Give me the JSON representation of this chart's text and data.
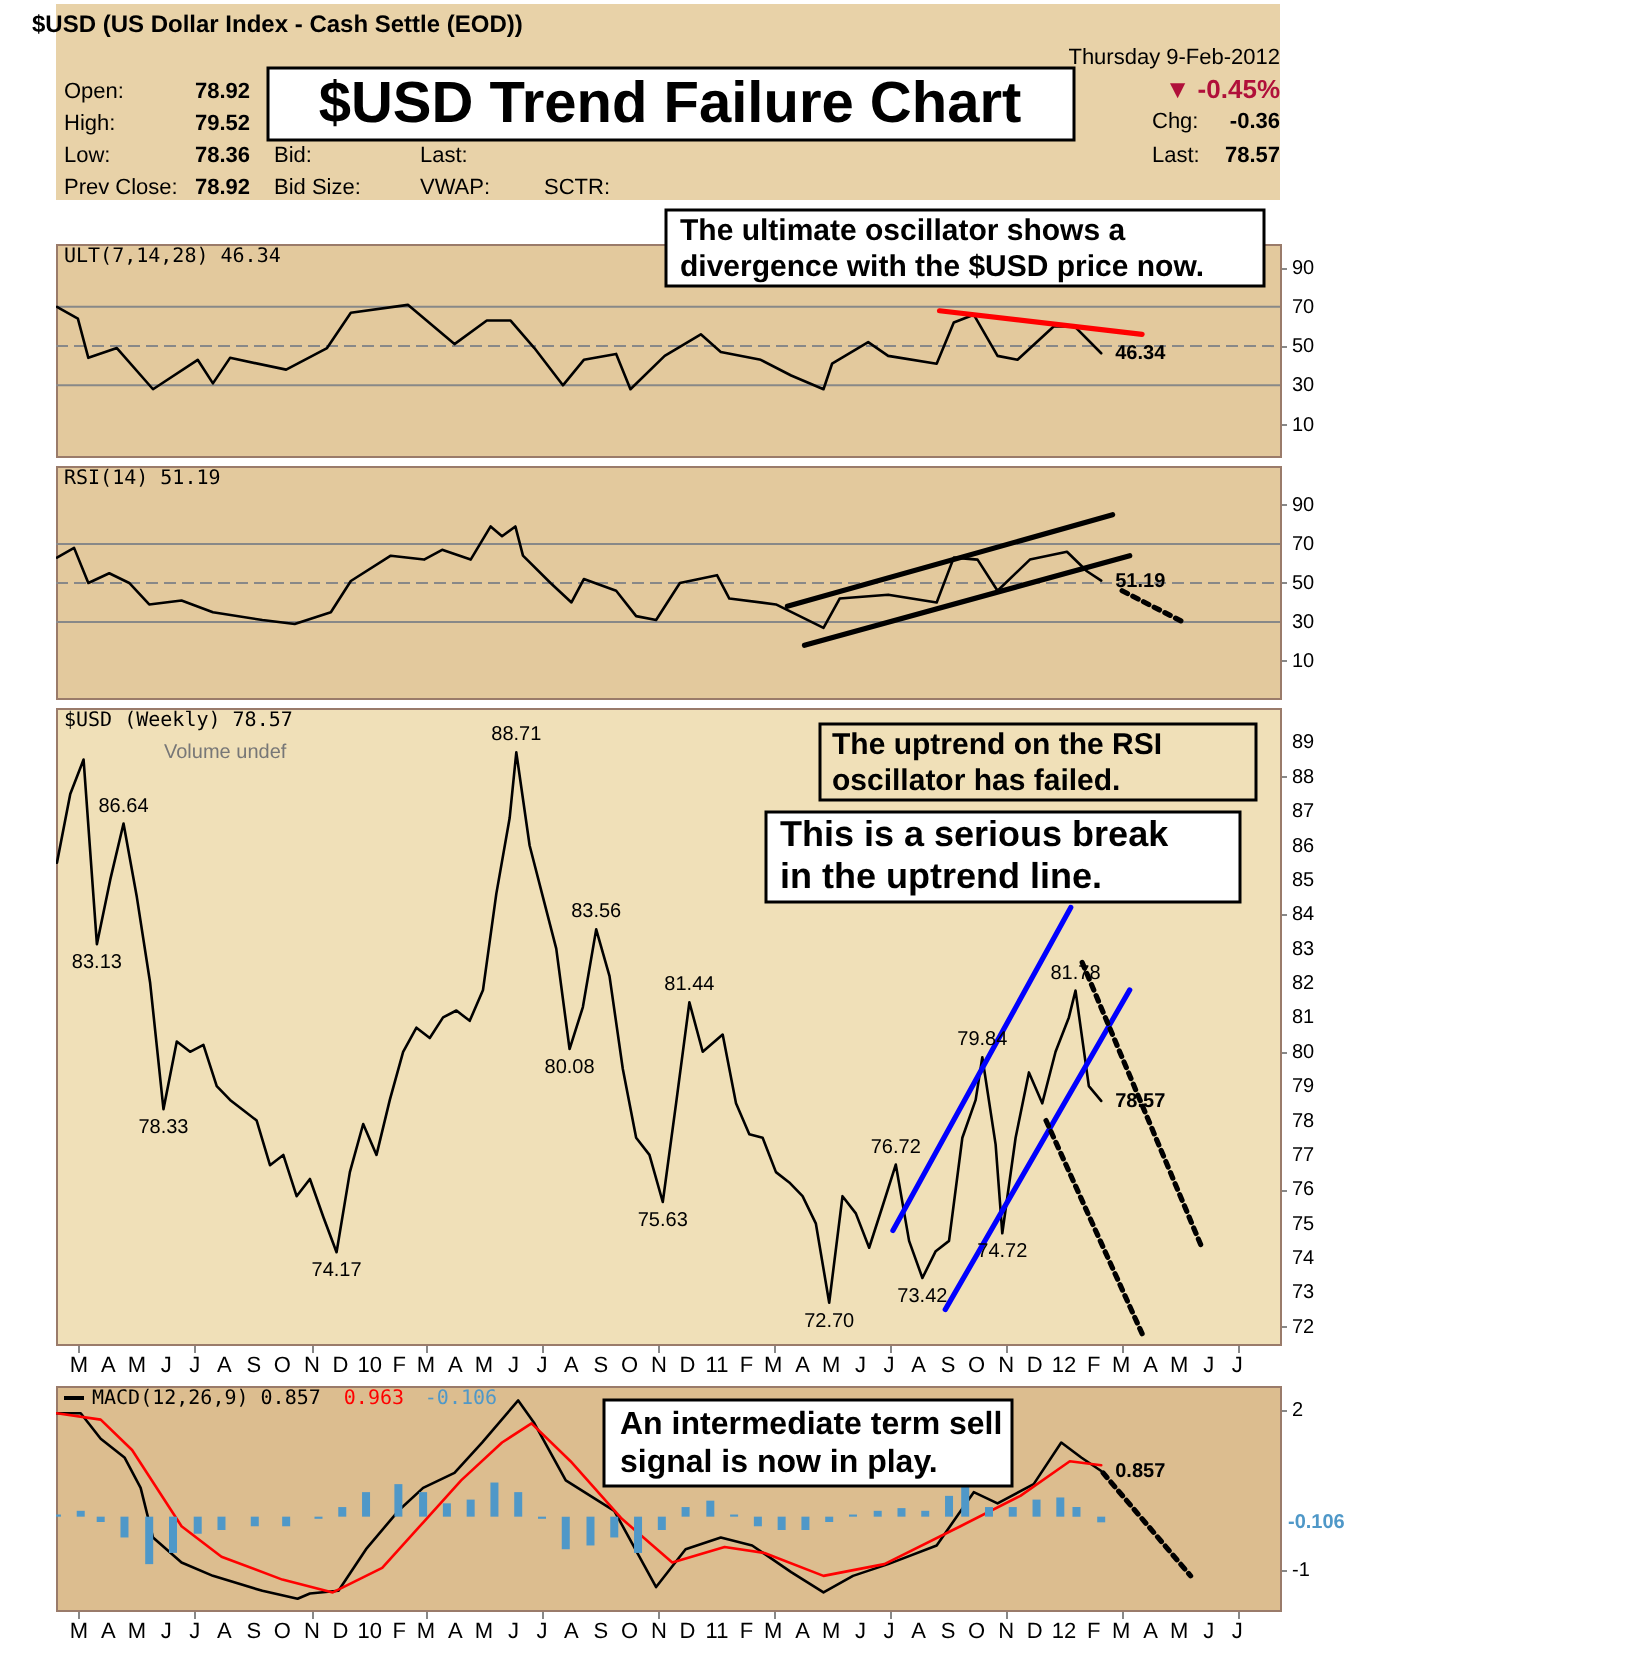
{
  "chart_data": [
    {
      "type": "line",
      "title": "$USD Trend Failure Chart",
      "annotations": [
        "$USD (US Dollar Index - Cash Settle (EOD))",
        "Thursday 9-Feb-2012",
        "Open:",
        "78.92",
        "High:",
        "79.52",
        "Low:",
        "78.36",
        "Prev Close:",
        "78.92",
        "Bid:",
        "Bid Size:",
        "Last:",
        "VWAP:",
        "SCTR:",
        "▼ -0.45%",
        "Chg:",
        "-0.36",
        "Last:",
        "78.57",
        "The ultimate oscillator shows a\ndivergence with the $USD price now.",
        {
          "text": "46.34",
          "x": "2012-02-09",
          "y": 46.34
        }
      ],
      "xlim": [
        "2009-02-05",
        "2012-08-15"
      ],
      "ylim": [
        -6,
        102
      ],
      "yticks": [
        10,
        30,
        50,
        70,
        90
      ],
      "tick_labels": "y",
      "legend": "top left",
      "ref_lines": [
        {
          "axis": "y",
          "value": 70,
          "color": "#888888",
          "line_style": "solid"
        },
        {
          "axis": "y",
          "value": 30,
          "color": "#888888",
          "line_style": "solid"
        },
        {
          "axis": "y",
          "value": 50,
          "color": "#888888",
          "line_style": "dashed"
        }
      ],
      "series": [
        {
          "name": "ULT(7,14,28) 46.34",
          "color": "#000000",
          "x": [
            "2009-02-06",
            "2009-02-28",
            "2009-03-11",
            "2009-04-10",
            "2009-05-18",
            "2009-07-04",
            "2009-07-20",
            "2009-08-07",
            "2009-10-05",
            "2009-11-17",
            "2009-12-12",
            "2010-02-10",
            "2010-03-31",
            "2010-05-04",
            "2010-05-29",
            "2010-06-23",
            "2010-07-23",
            "2010-08-14",
            "2010-09-17",
            "2010-10-02",
            "2010-11-07",
            "2010-12-15",
            "2011-01-05",
            "2011-02-16",
            "2011-03-20",
            "2011-04-23",
            "2011-05-02",
            "2011-06-09",
            "2011-06-30",
            "2011-08-20",
            "2011-09-07",
            "2011-09-28",
            "2011-10-23",
            "2011-11-13",
            "2011-12-21",
            "2012-01-12",
            "2012-02-09"
          ],
          "values": [
            70,
            64,
            44,
            49,
            28,
            43,
            31,
            44,
            38,
            49,
            67,
            71,
            51,
            63,
            63,
            49,
            30,
            43,
            46,
            28,
            45,
            56,
            47,
            43,
            35,
            28,
            41,
            52,
            45,
            41,
            62,
            66,
            45,
            43,
            60,
            60,
            46.34
          ]
        },
        {
          "type": "line",
          "color": "#ff0000",
          "x": [
            "2011-08-23",
            "2012-03-23"
          ],
          "values": [
            68,
            56
          ]
        }
      ]
    },
    {
      "type": "line",
      "annotations": [
        {
          "text": "51.19",
          "x": "2012-02-09",
          "y": 51.19
        }
      ],
      "xlim": [
        "2009-02-05",
        "2012-08-15"
      ],
      "ylim": [
        -9,
        110
      ],
      "yticks": [
        10,
        30,
        50,
        70,
        90
      ],
      "tick_labels": "y",
      "legend": "top left",
      "ref_lines": [
        {
          "axis": "y",
          "value": 70,
          "color": "#888888",
          "line_style": "solid"
        },
        {
          "axis": "y",
          "value": 30,
          "color": "#888888",
          "line_style": "solid"
        },
        {
          "axis": "y",
          "value": 50,
          "color": "#888888",
          "line_style": "dashed"
        }
      ],
      "series": [
        {
          "name": "RSI(14) 51.19",
          "color": "#000000",
          "x": [
            "2009-02-06",
            "2009-02-24",
            "2009-03-11",
            "2009-04-02",
            "2009-04-23",
            "2009-05-14",
            "2009-06-17",
            "2009-07-20",
            "2009-09-10",
            "2009-10-14",
            "2009-11-21",
            "2009-12-12",
            "2010-01-23",
            "2010-02-27",
            "2010-03-18",
            "2010-04-17",
            "2010-05-08",
            "2010-05-20",
            "2010-06-03",
            "2010-06-11",
            "2010-07-10",
            "2010-08-01",
            "2010-08-14",
            "2010-09-17",
            "2010-10-08",
            "2010-10-29",
            "2010-11-23",
            "2011-01-01",
            "2011-01-14",
            "2011-03-04",
            "2011-04-23",
            "2011-05-10",
            "2011-06-30",
            "2011-08-20",
            "2011-09-07",
            "2011-10-02",
            "2011-10-23",
            "2011-11-26",
            "2012-01-04",
            "2012-01-25",
            "2012-02-09"
          ],
          "values": [
            63,
            68,
            50,
            55,
            50,
            39,
            41,
            35,
            31,
            29,
            35,
            51,
            64,
            62,
            67,
            62,
            79,
            74,
            79,
            64,
            50,
            40,
            52,
            46,
            33,
            31,
            50,
            54,
            42,
            39,
            27,
            42,
            44,
            40,
            63,
            62,
            46,
            62,
            66,
            56,
            51.19
          ]
        },
        {
          "type": "line",
          "color": "#000000",
          "x": [
            "2011-03-16",
            "2012-02-21"
          ],
          "values": [
            38,
            85
          ]
        },
        {
          "type": "line",
          "color": "#000000",
          "x": [
            "2011-04-03",
            "2012-03-10"
          ],
          "values": [
            18,
            64
          ]
        },
        {
          "type": "line",
          "color": "#000000",
          "line_style": "dotted",
          "x": [
            "2012-03-02",
            "2012-05-05"
          ],
          "values": [
            46,
            30
          ]
        }
      ]
    },
    {
      "type": "line",
      "annotations": [
        "Volume undef",
        "The uptrend on the RSI\noscillator has failed.",
        "This is a serious break\nin the uptrend line.",
        {
          "text": "86.64",
          "x": "2009-04-17",
          "y": 86.64
        },
        {
          "text": "83.13",
          "x": "2009-03-20",
          "y": 83.13
        },
        {
          "text": "88.71",
          "x": "2010-06-04",
          "y": 88.71
        },
        {
          "text": "78.33",
          "x": "2009-05-29",
          "y": 78.33
        },
        {
          "text": "74.17",
          "x": "2009-11-27",
          "y": 74.17
        },
        {
          "text": "83.56",
          "x": "2010-08-27",
          "y": 83.56
        },
        {
          "text": "80.08",
          "x": "2010-07-30",
          "y": 80.08
        },
        {
          "text": "81.44",
          "x": "2010-12-03",
          "y": 81.44
        },
        {
          "text": "75.63",
          "x": "2010-11-05",
          "y": 75.63
        },
        {
          "text": "72.70",
          "x": "2011-04-29",
          "y": 72.7
        },
        {
          "text": "76.72",
          "x": "2011-07-08",
          "y": 76.72
        },
        {
          "text": "73.42",
          "x": "2011-08-05",
          "y": 73.42
        },
        {
          "text": "79.84",
          "x": "2011-10-07",
          "y": 79.84
        },
        {
          "text": "74.72",
          "x": "2011-10-28",
          "y": 74.72
        },
        {
          "text": "81.78",
          "x": "2012-01-13",
          "y": 81.78
        },
        {
          "text": "78.57",
          "x": "2012-02-09",
          "y": 78.57
        }
      ],
      "xlim": [
        "2009-02-05",
        "2012-08-15"
      ],
      "ylim": [
        71.5,
        90
      ],
      "yticks": [
        72,
        73,
        74,
        75,
        76,
        77,
        78,
        79,
        80,
        81,
        82,
        83,
        84,
        85,
        86,
        87,
        88,
        89
      ],
      "legend": "top left",
      "xticks": [
        {
          "value": "2009-03",
          "label": "M"
        },
        {
          "value": "2009-04",
          "label": "A"
        },
        {
          "value": "2009-05",
          "label": "M"
        },
        {
          "value": "2009-06",
          "label": "J"
        },
        {
          "value": "2009-07",
          "label": "J"
        },
        {
          "value": "2009-08",
          "label": "A"
        },
        {
          "value": "2009-09",
          "label": "S"
        },
        {
          "value": "2009-10",
          "label": "O"
        },
        {
          "value": "2009-11",
          "label": "N"
        },
        {
          "value": "2009-12",
          "label": "D"
        },
        {
          "value": "2010-01",
          "label": "10"
        },
        {
          "value": "2010-02",
          "label": "F"
        },
        {
          "value": "2010-03",
          "label": "M"
        },
        {
          "value": "2010-04",
          "label": "A"
        },
        {
          "value": "2010-05",
          "label": "M"
        },
        {
          "value": "2010-06",
          "label": "J"
        },
        {
          "value": "2010-07",
          "label": "J"
        },
        {
          "value": "2010-08",
          "label": "A"
        },
        {
          "value": "2010-09",
          "label": "S"
        },
        {
          "value": "2010-10",
          "label": "O"
        },
        {
          "value": "2010-11",
          "label": "N"
        },
        {
          "value": "2010-12",
          "label": "D"
        },
        {
          "value": "2011-01",
          "label": "11"
        },
        {
          "value": "2011-02",
          "label": "F"
        },
        {
          "value": "2011-03",
          "label": "M"
        },
        {
          "value": "2011-04",
          "label": "A"
        },
        {
          "value": "2011-05",
          "label": "M"
        },
        {
          "value": "2011-06",
          "label": "J"
        },
        {
          "value": "2011-07",
          "label": "J"
        },
        {
          "value": "2011-08",
          "label": "A"
        },
        {
          "value": "2011-09",
          "label": "S"
        },
        {
          "value": "2011-10",
          "label": "O"
        },
        {
          "value": "2011-11",
          "label": "N"
        },
        {
          "value": "2011-12",
          "label": "D"
        },
        {
          "value": "2012-01",
          "label": "12"
        },
        {
          "value": "2012-02",
          "label": "F"
        },
        {
          "value": "2012-03",
          "label": "M"
        },
        {
          "value": "2012-04",
          "label": "A"
        },
        {
          "value": "2012-05",
          "label": "M"
        },
        {
          "value": "2012-06",
          "label": "J"
        },
        {
          "value": "2012-07",
          "label": "J"
        }
      ],
      "series": [
        {
          "name": "$USD (Weekly) 78.57",
          "color": "#000000",
          "x": [
            "2009-02-06",
            "2009-02-20",
            "2009-03-06",
            "2009-03-20",
            "2009-04-03",
            "2009-04-17",
            "2009-05-01",
            "2009-05-15",
            "2009-05-29",
            "2009-06-12",
            "2009-06-26",
            "2009-07-10",
            "2009-07-24",
            "2009-08-07",
            "2009-08-21",
            "2009-09-04",
            "2009-09-18",
            "2009-10-02",
            "2009-10-16",
            "2009-10-30",
            "2009-11-13",
            "2009-11-27",
            "2009-12-11",
            "2009-12-25",
            "2010-01-08",
            "2010-01-22",
            "2010-02-05",
            "2010-02-19",
            "2010-03-05",
            "2010-03-19",
            "2010-04-02",
            "2010-04-16",
            "2010-04-30",
            "2010-05-14",
            "2010-05-28",
            "2010-06-04",
            "2010-06-18",
            "2010-07-02",
            "2010-07-16",
            "2010-07-30",
            "2010-08-13",
            "2010-08-27",
            "2010-09-10",
            "2010-09-24",
            "2010-10-08",
            "2010-10-22",
            "2010-11-05",
            "2010-11-19",
            "2010-12-03",
            "2010-12-17",
            "2011-01-07",
            "2011-01-21",
            "2011-02-04",
            "2011-02-18",
            "2011-03-04",
            "2011-03-18",
            "2011-04-01",
            "2011-04-15",
            "2011-04-29",
            "2011-05-13",
            "2011-05-27",
            "2011-06-10",
            "2011-06-24",
            "2011-07-08",
            "2011-07-22",
            "2011-08-05",
            "2011-08-19",
            "2011-09-02",
            "2011-09-16",
            "2011-09-30",
            "2011-10-07",
            "2011-10-21",
            "2011-10-28",
            "2011-11-11",
            "2011-11-25",
            "2011-12-09",
            "2011-12-23",
            "2012-01-06",
            "2012-01-13",
            "2012-01-27",
            "2012-02-09"
          ],
          "values": [
            85.5,
            87.5,
            88.5,
            83.13,
            85.0,
            86.64,
            84.5,
            82.0,
            78.33,
            80.3,
            80.0,
            80.2,
            79.0,
            78.6,
            78.3,
            78.0,
            76.7,
            77.0,
            75.8,
            76.3,
            75.2,
            74.17,
            76.5,
            77.9,
            77.0,
            78.6,
            80.0,
            80.7,
            80.4,
            81.0,
            81.2,
            80.9,
            81.8,
            84.6,
            86.8,
            88.71,
            86.0,
            84.5,
            83.0,
            80.08,
            81.3,
            83.56,
            82.2,
            79.5,
            77.5,
            77.0,
            75.63,
            78.5,
            81.44,
            80.0,
            80.5,
            78.5,
            77.6,
            77.5,
            76.5,
            76.2,
            75.8,
            75.0,
            72.7,
            75.8,
            75.3,
            74.3,
            75.5,
            76.72,
            74.5,
            73.42,
            74.2,
            74.5,
            77.5,
            78.6,
            79.84,
            77.3,
            74.72,
            77.5,
            79.4,
            78.5,
            80.0,
            81.0,
            81.78,
            79.0,
            78.57
          ]
        },
        {
          "type": "line",
          "color": "#0000ff",
          "x": [
            "2011-07-05",
            "2012-01-08"
          ],
          "values": [
            74.8,
            84.2
          ]
        },
        {
          "type": "line",
          "color": "#0000ff",
          "x": [
            "2011-08-29",
            "2012-03-10"
          ],
          "values": [
            72.5,
            81.8
          ]
        },
        {
          "type": "line",
          "color": "#000000",
          "line_style": "dotted",
          "x": [
            "2012-01-20",
            "2012-05-25"
          ],
          "values": [
            82.6,
            74.3
          ]
        },
        {
          "type": "line",
          "color": "#000000",
          "line_style": "dotted",
          "x": [
            "2011-12-13",
            "2012-03-23"
          ],
          "values": [
            78.0,
            71.8
          ]
        }
      ]
    },
    {
      "type": "line",
      "annotations": [
        "An intermediate term sell\nsignal is now in play.",
        {
          "text": "0.857",
          "x": "2012-02-09",
          "y": 0.857
        },
        "-0.106"
      ],
      "xlim": [
        "2009-02-05",
        "2012-08-15"
      ],
      "ylim": [
        -1.75,
        2.45
      ],
      "yticks": [
        -1,
        2
      ],
      "legend": "top left",
      "xticks": [
        {
          "value": "2009-03",
          "label": "M"
        },
        {
          "value": "2009-04",
          "label": "A"
        },
        {
          "value": "2009-05",
          "label": "M"
        },
        {
          "value": "2009-06",
          "label": "J"
        },
        {
          "value": "2009-07",
          "label": "J"
        },
        {
          "value": "2009-08",
          "label": "A"
        },
        {
          "value": "2009-09",
          "label": "S"
        },
        {
          "value": "2009-10",
          "label": "O"
        },
        {
          "value": "2009-11",
          "label": "N"
        },
        {
          "value": "2009-12",
          "label": "D"
        },
        {
          "value": "2010-01",
          "label": "10"
        },
        {
          "value": "2010-02",
          "label": "F"
        },
        {
          "value": "2010-03",
          "label": "M"
        },
        {
          "value": "2010-04",
          "label": "A"
        },
        {
          "value": "2010-05",
          "label": "M"
        },
        {
          "value": "2010-06",
          "label": "J"
        },
        {
          "value": "2010-07",
          "label": "J"
        },
        {
          "value": "2010-08",
          "label": "A"
        },
        {
          "value": "2010-09",
          "label": "S"
        },
        {
          "value": "2010-10",
          "label": "O"
        },
        {
          "value": "2010-11",
          "label": "N"
        },
        {
          "value": "2010-12",
          "label": "D"
        },
        {
          "value": "2011-01",
          "label": "11"
        },
        {
          "value": "2011-02",
          "label": "F"
        },
        {
          "value": "2011-03",
          "label": "M"
        },
        {
          "value": "2011-04",
          "label": "A"
        },
        {
          "value": "2011-05",
          "label": "M"
        },
        {
          "value": "2011-06",
          "label": "J"
        },
        {
          "value": "2011-07",
          "label": "J"
        },
        {
          "value": "2011-08",
          "label": "A"
        },
        {
          "value": "2011-09",
          "label": "S"
        },
        {
          "value": "2011-10",
          "label": "O"
        },
        {
          "value": "2011-11",
          "label": "N"
        },
        {
          "value": "2011-12",
          "label": "D"
        },
        {
          "value": "2012-01",
          "label": "12"
        },
        {
          "value": "2012-02",
          "label": "F"
        },
        {
          "value": "2012-03",
          "label": "M"
        },
        {
          "value": "2012-04",
          "label": "A"
        },
        {
          "value": "2012-05",
          "label": "M"
        },
        {
          "value": "2012-06",
          "label": "J"
        },
        {
          "value": "2012-07",
          "label": "J"
        }
      ],
      "series": [
        {
          "name": "MACD(12,26,9) 0.857",
          "color": "#000000",
          "x": [
            "2009-02-06",
            "2009-03-03",
            "2009-03-24",
            "2009-04-18",
            "2009-05-05",
            "2009-05-18",
            "2009-06-17",
            "2009-07-20",
            "2009-09-10",
            "2009-10-17",
            "2009-10-30",
            "2009-11-29",
            "2009-12-28",
            "2010-01-31",
            "2010-02-26",
            "2010-03-31",
            "2010-04-29",
            "2010-06-06",
            "2010-06-23",
            "2010-07-26",
            "2010-09-15",
            "2010-10-29",
            "2010-11-29",
            "2011-01-05",
            "2011-02-07",
            "2011-03-20",
            "2011-04-23",
            "2011-05-24",
            "2011-06-30",
            "2011-08-20",
            "2011-09-28",
            "2011-10-23",
            "2011-11-30",
            "2011-12-29",
            "2012-01-19",
            "2012-02-09"
          ],
          "values": [
            1.94,
            1.94,
            1.46,
            1.11,
            0.54,
            -0.39,
            -0.86,
            -1.11,
            -1.39,
            -1.54,
            -1.44,
            -1.39,
            -0.61,
            0.11,
            0.54,
            0.82,
            1.39,
            2.18,
            1.75,
            0.68,
            0.11,
            -1.32,
            -0.61,
            -0.39,
            -0.54,
            -1.04,
            -1.42,
            -1.11,
            -0.89,
            -0.54,
            0.46,
            0.25,
            0.61,
            1.39,
            1.11,
            0.857
          ]
        },
        {
          "name": "0.963",
          "color": "#ff0000",
          "x": [
            "2009-02-06",
            "2009-03-24",
            "2009-04-26",
            "2009-06-17",
            "2009-07-29",
            "2009-10-01",
            "2009-11-23",
            "2010-01-14",
            "2010-02-26",
            "2010-04-07",
            "2010-05-20",
            "2010-06-20",
            "2010-07-31",
            "2010-09-23",
            "2010-11-15",
            "2011-01-09",
            "2011-02-20",
            "2011-04-23",
            "2011-06-26",
            "2011-09-14",
            "2011-11-16",
            "2012-01-07",
            "2012-02-09"
          ],
          "values": [
            1.94,
            1.82,
            1.25,
            -0.18,
            -0.75,
            -1.18,
            -1.42,
            -0.96,
            -0.11,
            0.68,
            1.39,
            1.75,
            1.04,
            -0.04,
            -0.86,
            -0.57,
            -0.68,
            -1.11,
            -0.89,
            -0.18,
            0.39,
            1.04,
            0.963
          ]
        },
        {
          "name": "-0.106",
          "type": "bar",
          "color": "#4f98c8",
          "x": [
            "2009-02-06",
            "2009-03-03",
            "2009-03-24",
            "2009-04-18",
            "2009-05-14",
            "2009-06-08",
            "2009-07-04",
            "2009-07-29",
            "2009-09-02",
            "2009-10-05",
            "2009-11-08",
            "2009-12-03",
            "2009-12-28",
            "2010-01-31",
            "2010-02-26",
            "2010-03-23",
            "2010-04-17",
            "2010-05-12",
            "2010-06-06",
            "2010-07-01",
            "2010-07-26",
            "2010-08-21",
            "2010-09-15",
            "2010-10-10",
            "2010-11-04",
            "2010-11-29",
            "2010-12-25",
            "2011-01-19",
            "2011-02-13",
            "2011-03-10",
            "2011-04-04",
            "2011-04-29",
            "2011-05-24",
            "2011-06-19",
            "2011-07-14",
            "2011-08-08",
            "2011-09-02",
            "2011-09-19",
            "2011-10-14",
            "2011-11-08",
            "2011-12-03",
            "2011-12-28",
            "2012-01-14",
            "2012-02-09"
          ],
          "values": [
            0.04,
            0.11,
            -0.1,
            -0.39,
            -0.89,
            -0.68,
            -0.32,
            -0.25,
            -0.18,
            -0.18,
            -0.04,
            0.18,
            0.46,
            0.61,
            0.46,
            0.25,
            0.32,
            0.64,
            0.46,
            -0.04,
            -0.61,
            -0.54,
            -0.39,
            -0.68,
            -0.25,
            0.18,
            0.3,
            0.04,
            -0.18,
            -0.25,
            -0.25,
            -0.1,
            0.04,
            0.11,
            0.16,
            0.11,
            0.39,
            0.61,
            0.18,
            0.18,
            0.32,
            0.36,
            0.18,
            -0.106
          ]
        },
        {
          "type": "line",
          "color": "#000000",
          "line_style": "dotted",
          "x": [
            "2012-02-11",
            "2012-05-13"
          ],
          "values": [
            0.82,
            -1.11
          ]
        }
      ]
    }
  ]
}
